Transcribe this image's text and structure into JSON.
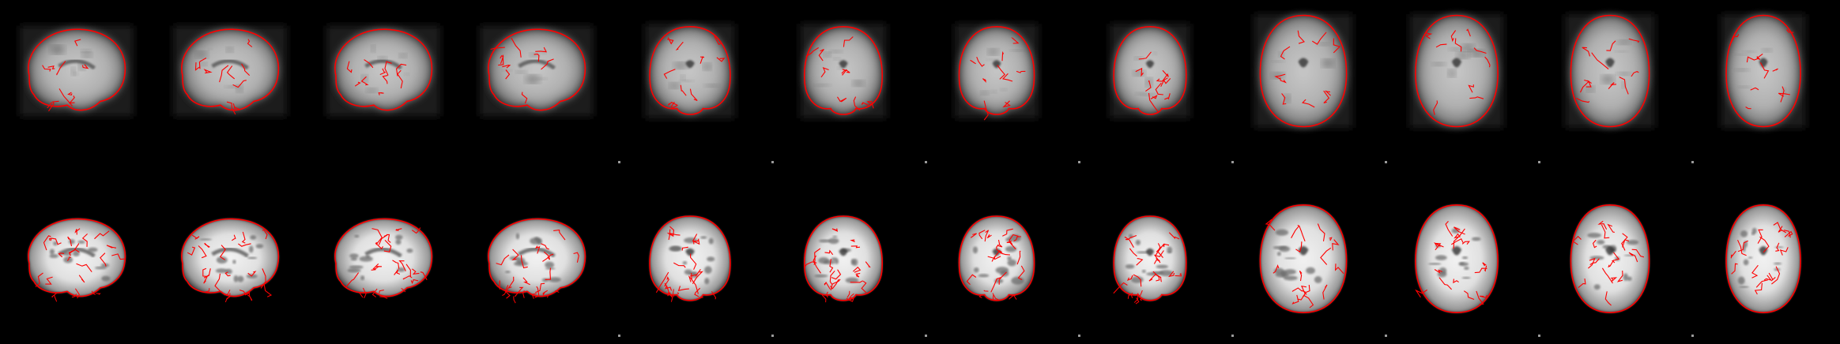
{
  "figure": {
    "background": "#000000",
    "overlay_color": "#ff0000",
    "rows": [
      {
        "name": "functional-row",
        "modality": "functional",
        "slices": [
          {
            "view": "sagittal"
          },
          {
            "view": "sagittal"
          },
          {
            "view": "sagittal"
          },
          {
            "view": "sagittal"
          },
          {
            "view": "coronal"
          },
          {
            "view": "coronal"
          },
          {
            "view": "coronal"
          },
          {
            "view": "coronal"
          },
          {
            "view": "axial"
          },
          {
            "view": "axial"
          },
          {
            "view": "axial"
          },
          {
            "view": "axial"
          }
        ]
      },
      {
        "name": "anatomical-row",
        "modality": "anatomical",
        "slices": [
          {
            "view": "sagittal"
          },
          {
            "view": "sagittal"
          },
          {
            "view": "sagittal"
          },
          {
            "view": "sagittal"
          },
          {
            "view": "coronal"
          },
          {
            "view": "coronal"
          },
          {
            "view": "coronal"
          },
          {
            "view": "coronal"
          },
          {
            "view": "axial"
          },
          {
            "view": "axial"
          },
          {
            "view": "axial"
          },
          {
            "view": "axial"
          }
        ]
      }
    ]
  }
}
